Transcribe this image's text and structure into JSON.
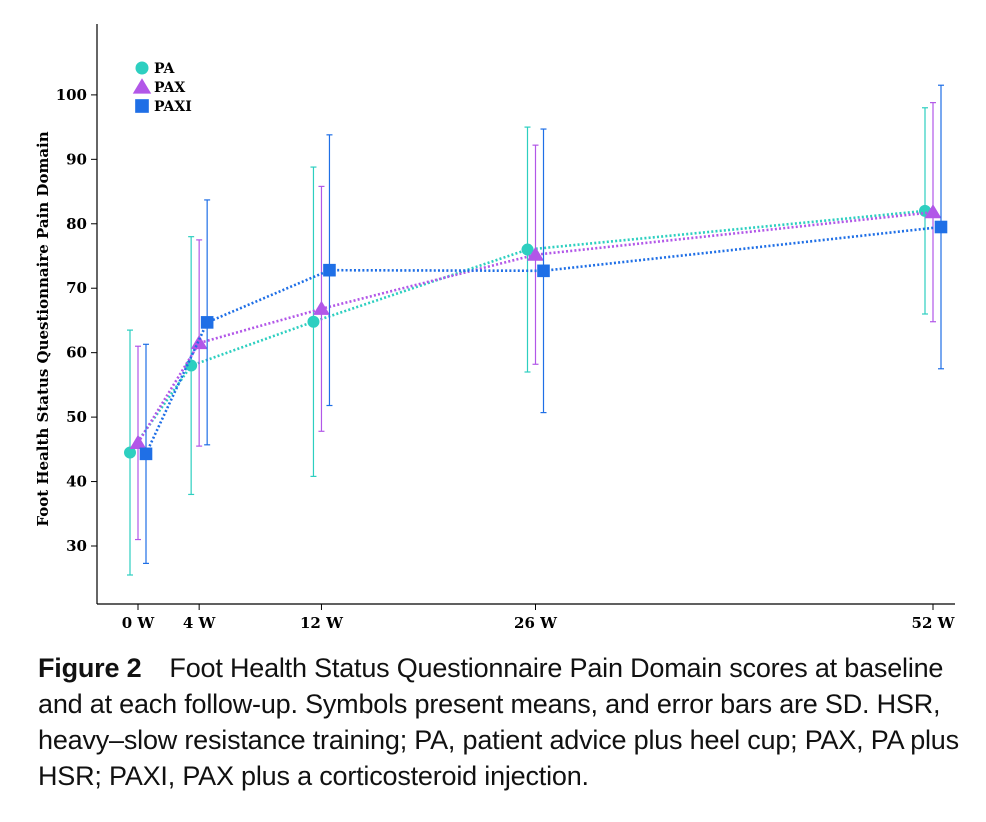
{
  "chart_data": {
    "type": "line",
    "x_categories": [
      "0 W",
      "4 W",
      "12 W",
      "26 W",
      "52 W"
    ],
    "x_weeks": [
      0,
      4,
      12,
      26,
      52
    ],
    "ylabel": "Foot Health Status Questionnaire Pain Domain",
    "xlabel": "",
    "y_ticks": [
      30,
      40,
      50,
      60,
      70,
      80,
      90,
      100
    ],
    "ylim": [
      21,
      111
    ],
    "grid": false,
    "legend_position": "top-left",
    "series": [
      {
        "name": "PA",
        "marker": "circle",
        "color": "#2dcfc0",
        "means": [
          44.5,
          58.0,
          64.8,
          76.0,
          82.0
        ],
        "sd_low": [
          25.5,
          38.0,
          40.8,
          57.0,
          66.0
        ],
        "sd_high": [
          63.5,
          78.0,
          88.8,
          95.0,
          98.0
        ]
      },
      {
        "name": "PAX",
        "marker": "triangle",
        "color": "#b257e8",
        "means": [
          46.0,
          61.5,
          66.8,
          75.2,
          81.8
        ],
        "sd_low": [
          31.0,
          45.5,
          47.8,
          58.2,
          64.8
        ],
        "sd_high": [
          61.0,
          77.5,
          85.8,
          92.2,
          98.8
        ]
      },
      {
        "name": "PAXI",
        "marker": "square",
        "color": "#1f6fe6",
        "means": [
          44.3,
          64.7,
          72.8,
          72.7,
          79.5
        ],
        "sd_low": [
          27.3,
          45.7,
          51.8,
          50.7,
          57.5
        ],
        "sd_high": [
          61.3,
          83.7,
          93.8,
          94.7,
          101.5
        ]
      }
    ]
  },
  "caption": {
    "label": "Figure 2",
    "text": "Foot Health Status Questionnaire Pain Domain scores at baseline and at each follow-up. Symbols present means, and error bars are SD. HSR, heavy–slow resistance training; PA, patient advice plus heel cup; PAX, PA plus HSR; PAXI, PAX plus a corticosteroid injection."
  }
}
